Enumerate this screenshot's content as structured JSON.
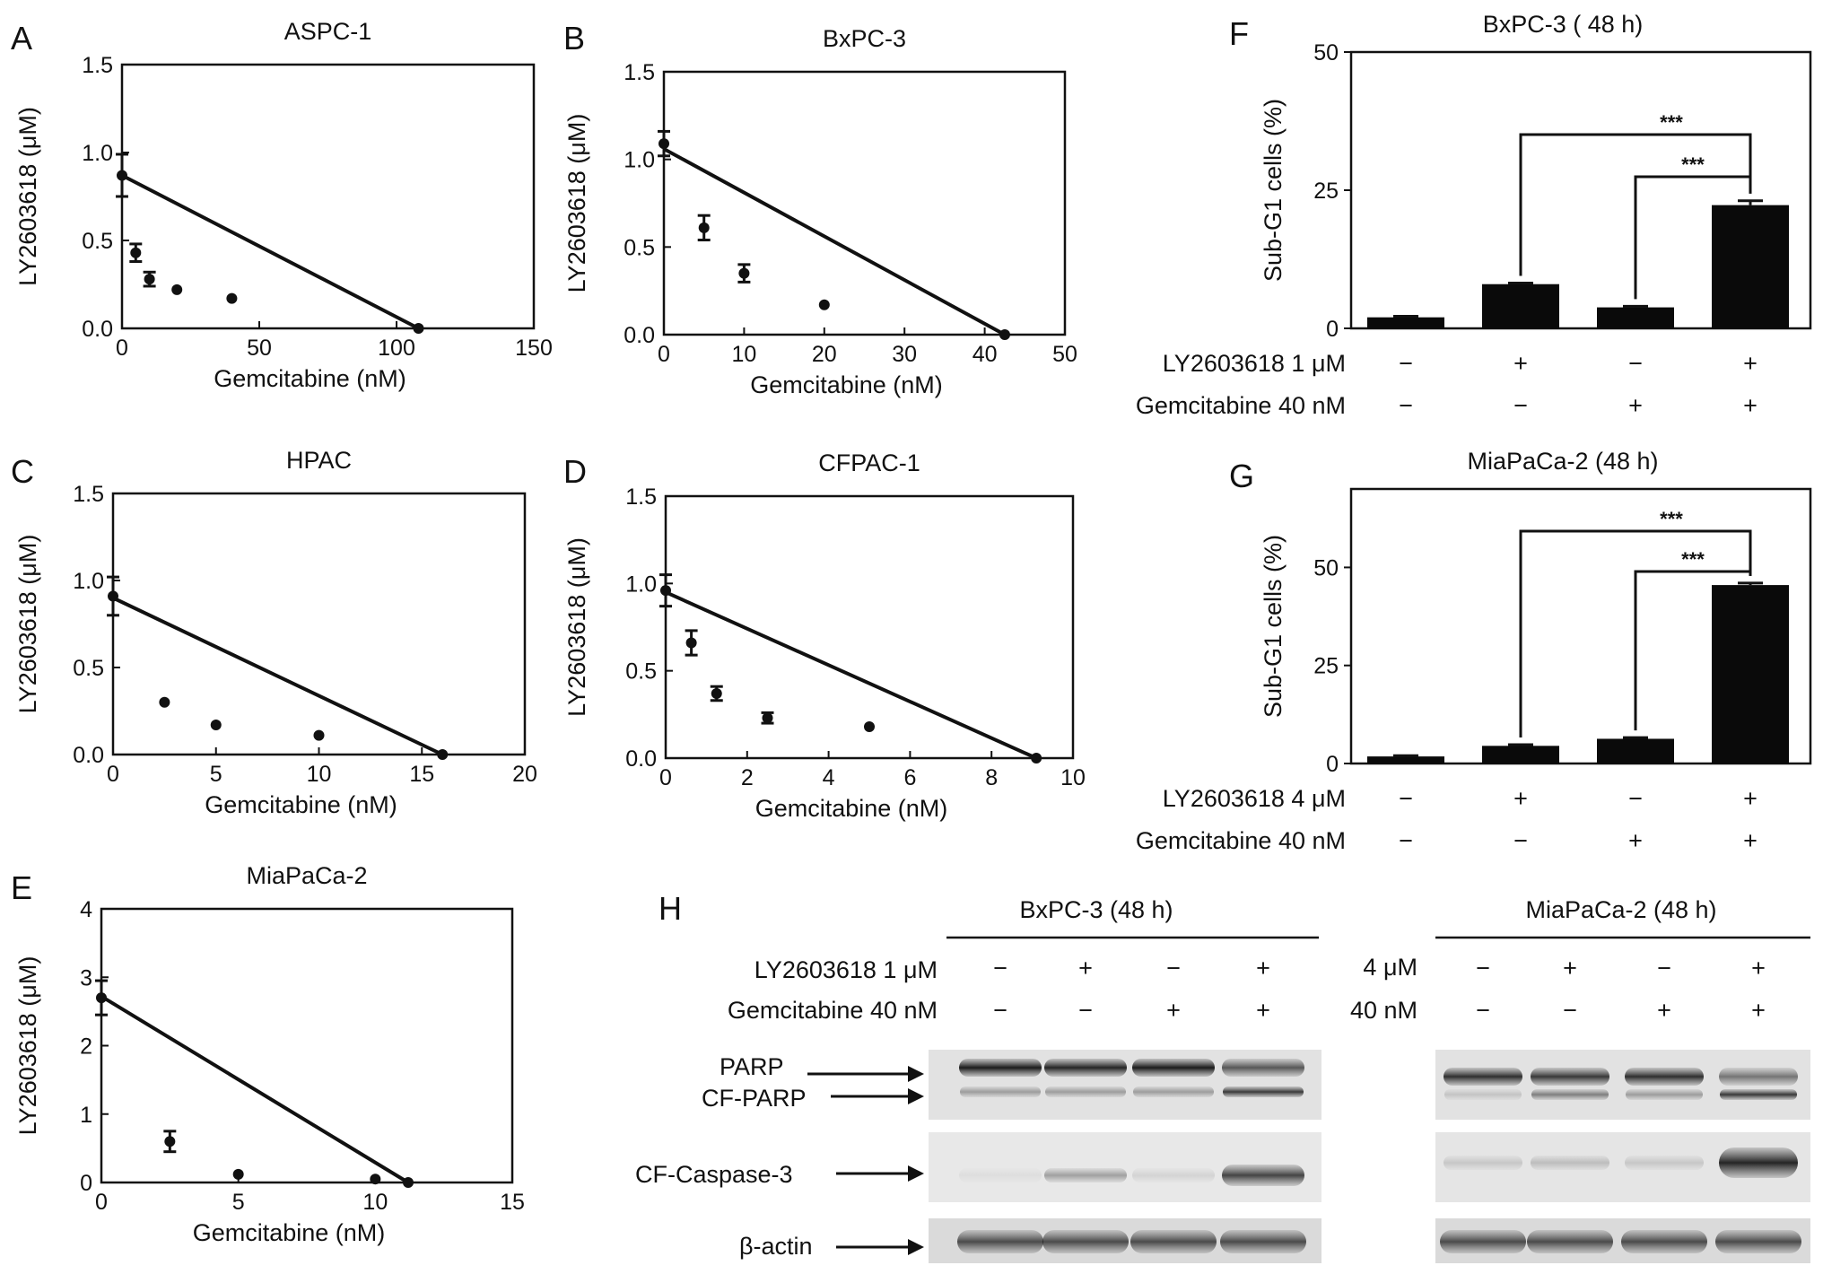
{
  "chart_data": [
    {
      "panel": "A",
      "type": "scatter",
      "title": "ASPC-1",
      "xlabel": "Gemcitabine (nM)",
      "ylabel": "LY2603618 (μM)",
      "xlim": [
        0,
        150
      ],
      "ylim": [
        0,
        1.5
      ],
      "xticks": [
        "0",
        "50",
        "100",
        "150"
      ],
      "yticks": [
        "0.0",
        "0.5",
        "1.0",
        "1.5"
      ],
      "points": [
        {
          "x": 0,
          "y": 0.87,
          "err": 0.12
        },
        {
          "x": 5,
          "y": 0.43,
          "err": 0.05
        },
        {
          "x": 10,
          "y": 0.28,
          "err": 0.04
        },
        {
          "x": 20,
          "y": 0.22,
          "err": 0
        },
        {
          "x": 40,
          "y": 0.17,
          "err": 0
        },
        {
          "x": 108,
          "y": 0.0,
          "err": 0
        }
      ],
      "line": [
        [
          0,
          0.87
        ],
        [
          108,
          0.0
        ]
      ]
    },
    {
      "panel": "B",
      "type": "scatter",
      "title": "BxPC-3",
      "xlabel": "Gemcitabine (nM)",
      "ylabel": "LY2603618 (μM)",
      "xlim": [
        0,
        50
      ],
      "ylim": [
        0,
        1.5
      ],
      "xticks": [
        "0",
        "10",
        "20",
        "30",
        "40",
        "50"
      ],
      "yticks": [
        "0.0",
        "0.5",
        "1.0",
        "1.5"
      ],
      "points": [
        {
          "x": 0,
          "y": 1.09,
          "err": 0.07
        },
        {
          "x": 5,
          "y": 0.61,
          "err": 0.07
        },
        {
          "x": 10,
          "y": 0.35,
          "err": 0.05
        },
        {
          "x": 20,
          "y": 0.17,
          "err": 0
        },
        {
          "x": 42.5,
          "y": 0.0,
          "err": 0
        }
      ],
      "line": [
        [
          0,
          1.06
        ],
        [
          42.5,
          0.0
        ]
      ]
    },
    {
      "panel": "C",
      "type": "scatter",
      "title": "HPAC",
      "xlabel": "Gemcitabine (nM)",
      "ylabel": "LY2603618 (μM)",
      "xlim": [
        0,
        20
      ],
      "ylim": [
        0,
        1.5
      ],
      "xticks": [
        "0",
        "5",
        "10",
        "15",
        "20"
      ],
      "yticks": [
        "0.0",
        "0.5",
        "1.0",
        "1.5"
      ],
      "points": [
        {
          "x": 0,
          "y": 0.91,
          "err": 0.11
        },
        {
          "x": 2.5,
          "y": 0.3,
          "err": 0
        },
        {
          "x": 5,
          "y": 0.17,
          "err": 0
        },
        {
          "x": 10,
          "y": 0.11,
          "err": 0
        },
        {
          "x": 16,
          "y": 0.0,
          "err": 0
        }
      ],
      "line": [
        [
          0,
          0.9
        ],
        [
          16,
          0.0
        ]
      ]
    },
    {
      "panel": "D",
      "type": "scatter",
      "title": "CFPAC-1",
      "xlabel": "Gemcitabine (nM)",
      "ylabel": "LY2603618 (μM)",
      "xlim": [
        0,
        10
      ],
      "ylim": [
        0,
        1.5
      ],
      "xticks": [
        "0",
        "2",
        "4",
        "6",
        "8",
        "10"
      ],
      "yticks": [
        "0.0",
        "0.5",
        "1.0",
        "1.5"
      ],
      "points": [
        {
          "x": 0,
          "y": 0.96,
          "err": 0.09
        },
        {
          "x": 0.63,
          "y": 0.66,
          "err": 0.07
        },
        {
          "x": 1.25,
          "y": 0.37,
          "err": 0.04
        },
        {
          "x": 2.5,
          "y": 0.23,
          "err": 0.03
        },
        {
          "x": 5,
          "y": 0.18,
          "err": 0
        },
        {
          "x": 9.1,
          "y": 0.0,
          "err": 0
        }
      ],
      "line": [
        [
          0,
          0.95
        ],
        [
          9.1,
          0.0
        ]
      ]
    },
    {
      "panel": "E",
      "type": "scatter",
      "title": "MiaPaCa-2",
      "xlabel": "Gemcitabine (nM)",
      "ylabel": "LY2603618 (μM)",
      "xlim": [
        0,
        15
      ],
      "ylim": [
        0,
        4
      ],
      "xticks": [
        "0",
        "5",
        "10",
        "15"
      ],
      "yticks": [
        "0",
        "1",
        "2",
        "3",
        "4"
      ],
      "points": [
        {
          "x": 0,
          "y": 2.7,
          "err": 0.25
        },
        {
          "x": 2.5,
          "y": 0.6,
          "err": 0.15
        },
        {
          "x": 5,
          "y": 0.12,
          "err": 0
        },
        {
          "x": 10,
          "y": 0.05,
          "err": 0
        },
        {
          "x": 11.2,
          "y": 0.0,
          "err": 0
        }
      ],
      "line": [
        [
          0,
          2.72
        ],
        [
          11.2,
          0.0
        ]
      ]
    },
    {
      "panel": "F",
      "type": "bar",
      "title": "BxPC-3 ( 48 h)",
      "ylabel": "Sub-G1 cells (%)",
      "ylim": [
        0,
        50
      ],
      "yticks": [
        "0",
        "25",
        "50"
      ],
      "values": [
        2,
        8,
        3.8,
        22.3
      ],
      "errors": [
        0.2,
        0.2,
        0.2,
        0.8
      ],
      "significance": "***",
      "rows": [
        {
          "label": "LY2603618 1 μM",
          "marks": [
            "−",
            "+",
            "−",
            "+"
          ]
        },
        {
          "label": "Gemcitabine 40 nM",
          "marks": [
            "−",
            "−",
            "+",
            "+"
          ]
        }
      ]
    },
    {
      "panel": "G",
      "type": "bar",
      "title": "MiaPaCa-2 (48 h)",
      "ylabel": "Sub-G1 cells (%)",
      "ylim": [
        0,
        70
      ],
      "yticks": [
        "0",
        "25",
        "50"
      ],
      "values": [
        1.8,
        4.5,
        6.3,
        45.5
      ],
      "errors": [
        0.2,
        0.3,
        0.3,
        0.5
      ],
      "significance": "***",
      "rows": [
        {
          "label": "LY2603618 4 μM",
          "marks": [
            "−",
            "+",
            "−",
            "+"
          ]
        },
        {
          "label": "Gemcitabine 40 nM",
          "marks": [
            "−",
            "−",
            "+",
            "+"
          ]
        }
      ]
    }
  ],
  "panel_h": {
    "letter": "H",
    "left_title": "BxPC-3 (48 h)",
    "right_title": "MiaPaCa-2 (48 h)",
    "row1_label": "LY2603618 1 μM",
    "row2_label": "Gemcitabine 40 nM",
    "row1_right_label": "4 μM",
    "row2_right_label": "40 nM",
    "row1_marks": [
      "−",
      "+",
      "−",
      "+"
    ],
    "row2_marks": [
      "−",
      "−",
      "+",
      "+"
    ],
    "band_labels": [
      "PARP",
      "CF-PARP",
      "CF-Caspase-3",
      "β-actin"
    ]
  }
}
